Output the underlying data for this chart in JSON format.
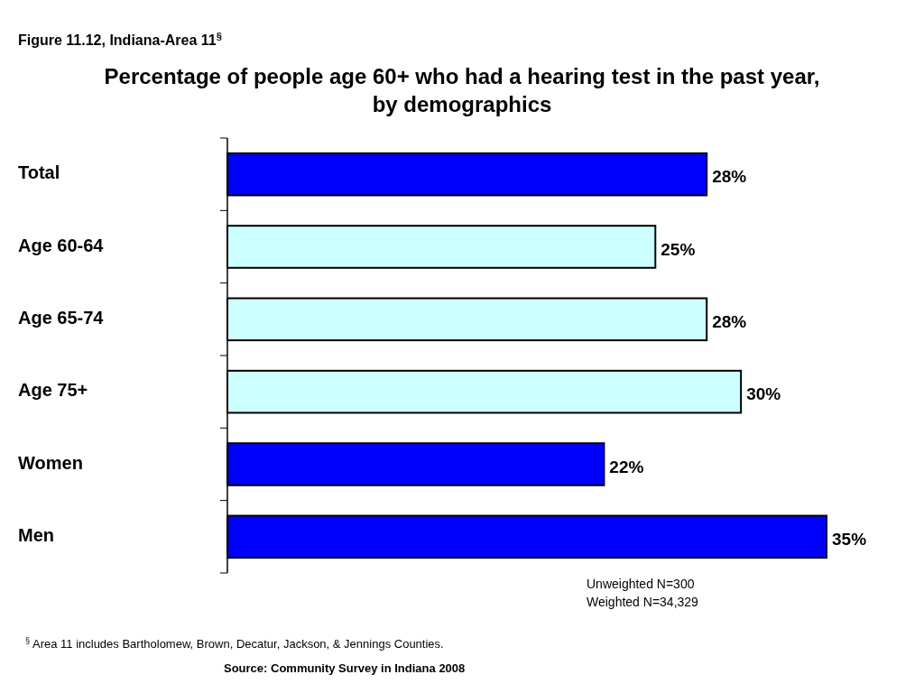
{
  "chart_data": {
    "type": "bar",
    "orientation": "horizontal",
    "title": "Percentage of people age 60+ who had a hearing test in the past year, by demographics",
    "categories": [
      "Total",
      "Age 60-64",
      "Age 65-74",
      "Age 75+",
      "Women",
      "Men"
    ],
    "values": [
      28,
      25,
      28,
      30,
      22,
      35
    ],
    "colors": [
      "#0000ff",
      "#ccffff",
      "#ccffff",
      "#ccffff",
      "#0000ff",
      "#0000ff"
    ],
    "value_labels": [
      "28%",
      "25%",
      "28%",
      "30%",
      "22%",
      "35%"
    ],
    "annotations": [
      "Figure 11.12, Indiana-Area 11$^{§}$",
      "Unweighted N=300",
      "Weighted N=34,329",
      "$^{§}$ Area 11 includes Bartholomew, Brown, Decatur, Jackson, & Jennings Counties.",
      "Source: Community Survey in Indiana 2008"
    ],
    "stacked": false
  }
}
